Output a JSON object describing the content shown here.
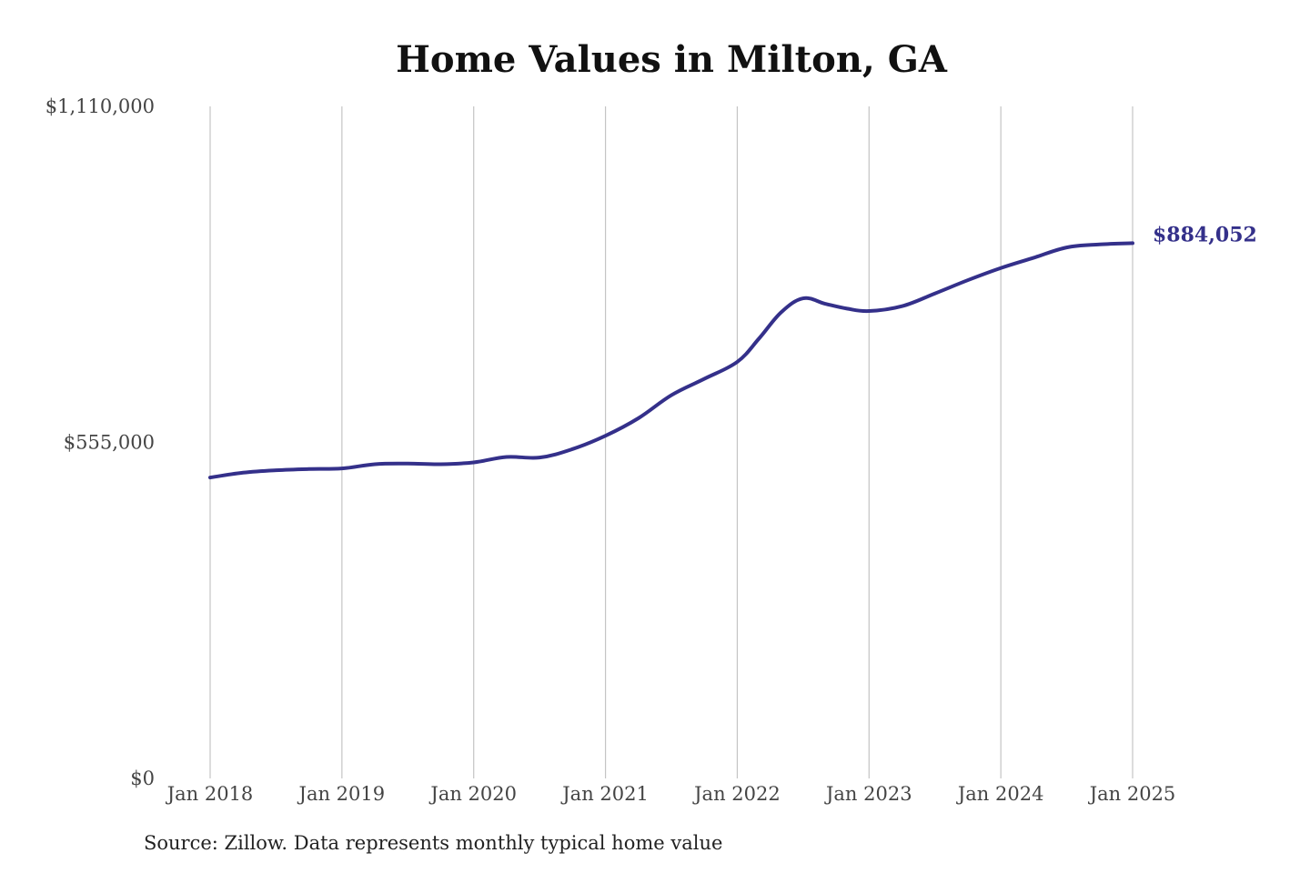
{
  "chart_data": {
    "type": "line",
    "title": "Home Values in Milton, GA",
    "xlabel": "",
    "ylabel": "",
    "ylim": [
      0,
      1110000
    ],
    "yticks": [
      {
        "value": 0,
        "label": "$0"
      },
      {
        "value": 555000,
        "label": "$555,000"
      },
      {
        "value": 1110000,
        "label": "$1,110,000"
      }
    ],
    "xticks": [
      {
        "value": "2018-01",
        "label": "Jan 2018"
      },
      {
        "value": "2019-01",
        "label": "Jan 2019"
      },
      {
        "value": "2020-01",
        "label": "Jan 2020"
      },
      {
        "value": "2021-01",
        "label": "Jan 2021"
      },
      {
        "value": "2022-01",
        "label": "Jan 2022"
      },
      {
        "value": "2023-01",
        "label": "Jan 2023"
      },
      {
        "value": "2024-01",
        "label": "Jan 2024"
      },
      {
        "value": "2025-01",
        "label": "Jan 2025"
      }
    ],
    "grid": "vertical",
    "series": [
      {
        "color": "#34308a",
        "end_label": "$884,052",
        "points": [
          {
            "x": "2018-01",
            "y": 497000
          },
          {
            "x": "2018-04",
            "y": 505000
          },
          {
            "x": "2018-07",
            "y": 509000
          },
          {
            "x": "2018-10",
            "y": 511000
          },
          {
            "x": "2019-01",
            "y": 512000
          },
          {
            "x": "2019-04",
            "y": 519000
          },
          {
            "x": "2019-07",
            "y": 520000
          },
          {
            "x": "2019-10",
            "y": 519000
          },
          {
            "x": "2020-01",
            "y": 522000
          },
          {
            "x": "2020-04",
            "y": 531000
          },
          {
            "x": "2020-07",
            "y": 530000
          },
          {
            "x": "2020-10",
            "y": 544000
          },
          {
            "x": "2021-01",
            "y": 566000
          },
          {
            "x": "2021-04",
            "y": 595000
          },
          {
            "x": "2021-07",
            "y": 633000
          },
          {
            "x": "2021-10",
            "y": 660000
          },
          {
            "x": "2022-01",
            "y": 688000
          },
          {
            "x": "2022-03",
            "y": 727000
          },
          {
            "x": "2022-05",
            "y": 770000
          },
          {
            "x": "2022-07",
            "y": 793000
          },
          {
            "x": "2022-09",
            "y": 784000
          },
          {
            "x": "2022-11",
            "y": 776000
          },
          {
            "x": "2023-01",
            "y": 772000
          },
          {
            "x": "2023-04",
            "y": 780000
          },
          {
            "x": "2023-07",
            "y": 801000
          },
          {
            "x": "2023-10",
            "y": 823000
          },
          {
            "x": "2024-01",
            "y": 843000
          },
          {
            "x": "2024-04",
            "y": 860000
          },
          {
            "x": "2024-07",
            "y": 877000
          },
          {
            "x": "2024-10",
            "y": 882000
          },
          {
            "x": "2025-01",
            "y": 884052
          }
        ]
      }
    ],
    "source": "Source: Zillow. Data represents monthly typical home value"
  }
}
